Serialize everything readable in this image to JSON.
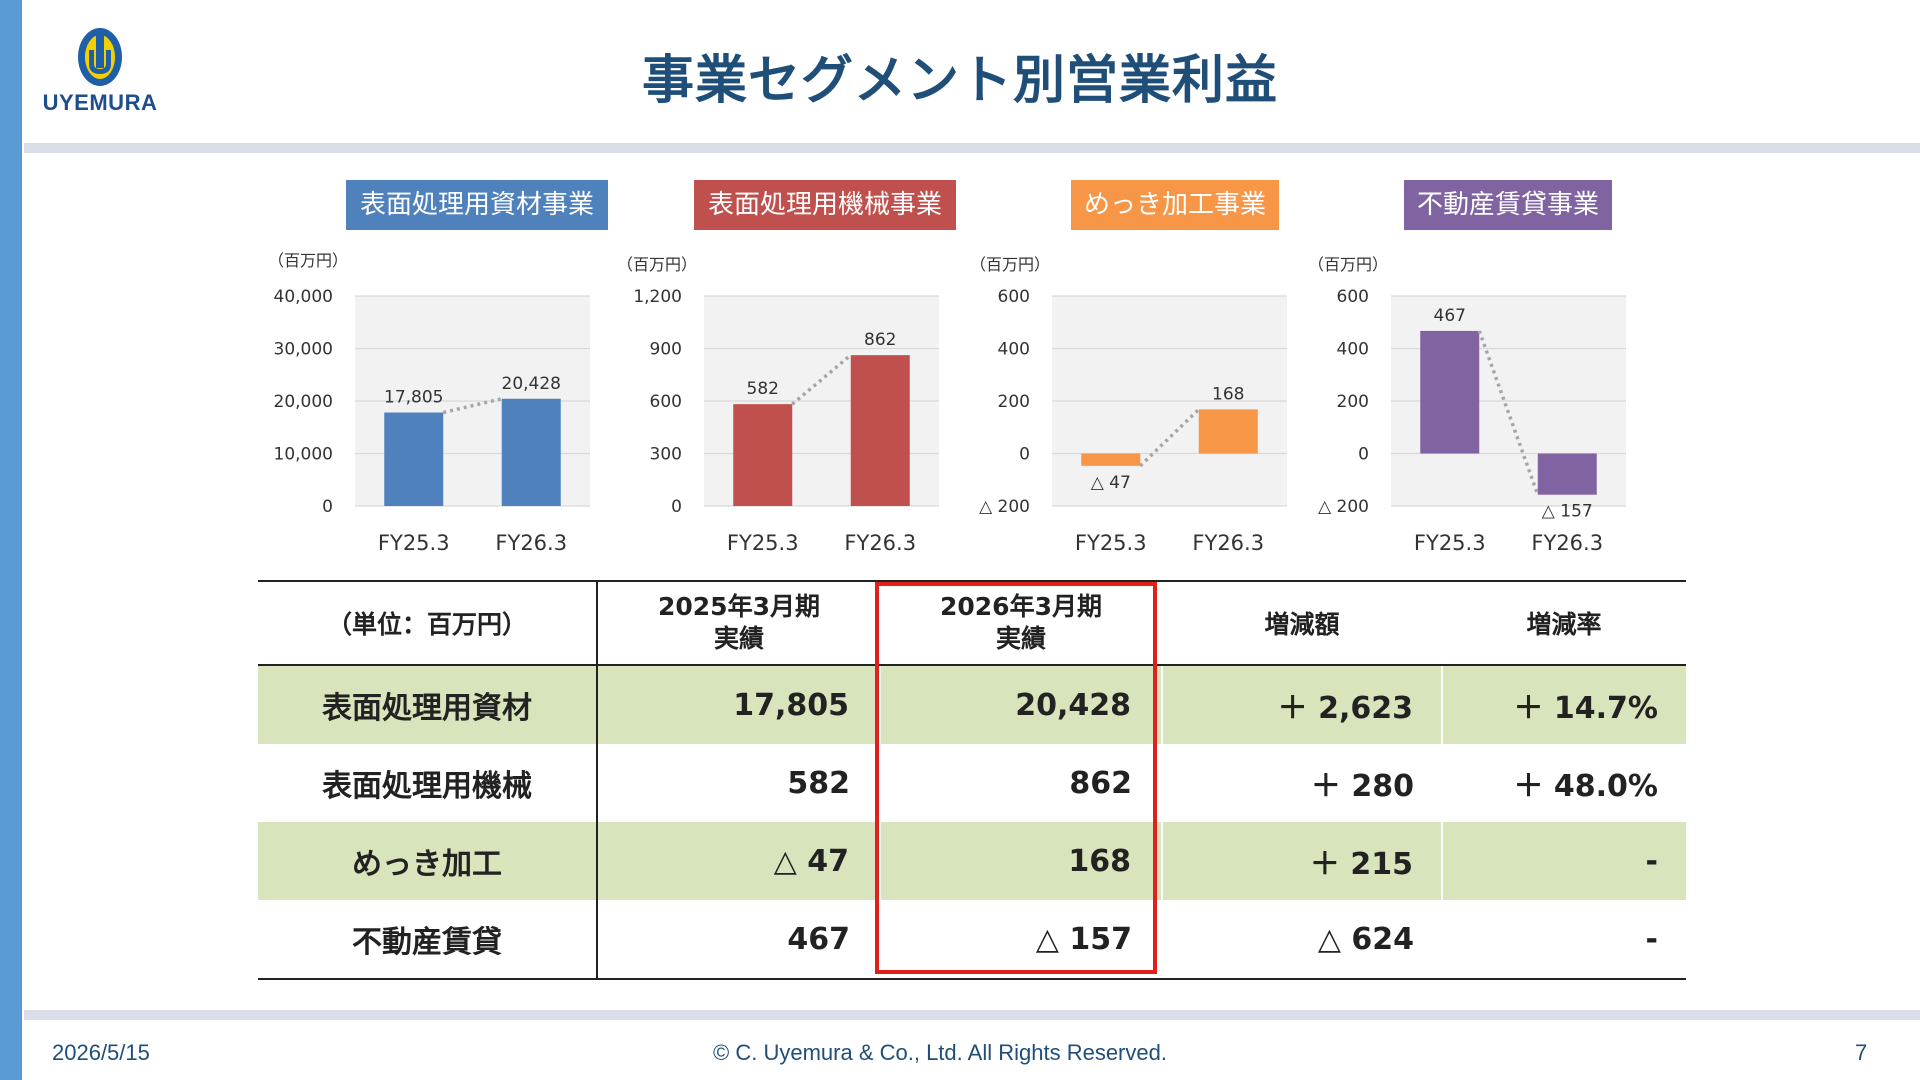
{
  "header": {
    "logo_text": "UYEMURA",
    "title": "事業セグメント別営業利益"
  },
  "colors": {
    "accent": "#5b9bd5",
    "title": "#1f4e79",
    "seg1": "#4f81bd",
    "seg2": "#c0504d",
    "seg3": "#f79646",
    "seg4": "#8064a2",
    "row_highlight": "#d8e4bc",
    "highlight_box": "#e0201b"
  },
  "segments": [
    {
      "label": "表面処理用資材事業",
      "unit": "（百万円）"
    },
    {
      "label": "表面処理用機械事業",
      "unit": "（百万円）"
    },
    {
      "label": "めっき加工事業",
      "unit": "（百万円）"
    },
    {
      "label": "不動産賃貸事業",
      "unit": "（百万円）"
    }
  ],
  "chart_data": [
    {
      "type": "bar",
      "title": "表面処理用資材事業",
      "ylabel": "（百万円）",
      "categories": [
        "FY25.3",
        "FY26.3"
      ],
      "values": [
        17805,
        20428
      ],
      "value_labels": [
        "17,805",
        "20,428"
      ],
      "ylim": [
        0,
        40000
      ],
      "yticks": [
        0,
        10000,
        20000,
        30000,
        40000
      ],
      "ytick_labels": [
        "0",
        "10,000",
        "20,000",
        "30,000",
        "40,000"
      ],
      "connector": "dotted",
      "grid": true
    },
    {
      "type": "bar",
      "title": "表面処理用機械事業",
      "ylabel": "（百万円）",
      "categories": [
        "FY25.3",
        "FY26.3"
      ],
      "values": [
        582,
        862
      ],
      "value_labels": [
        "582",
        "862"
      ],
      "ylim": [
        0,
        1200
      ],
      "yticks": [
        0,
        300,
        600,
        900,
        1200
      ],
      "ytick_labels": [
        "0",
        "300",
        "600",
        "900",
        "1,200"
      ],
      "connector": "dotted",
      "grid": true
    },
    {
      "type": "bar",
      "title": "めっき加工事業",
      "ylabel": "（百万円）",
      "categories": [
        "FY25.3",
        "FY26.3"
      ],
      "values": [
        -47,
        168
      ],
      "value_labels": [
        "△ 47",
        "168"
      ],
      "ylim": [
        -200,
        600
      ],
      "yticks": [
        -200,
        0,
        200,
        400,
        600
      ],
      "ytick_labels": [
        "△ 200",
        "0",
        "200",
        "400",
        "600"
      ],
      "connector": "dotted",
      "grid": true
    },
    {
      "type": "bar",
      "title": "不動産賃貸事業",
      "ylabel": "（百万円）",
      "categories": [
        "FY25.3",
        "FY26.3"
      ],
      "values": [
        467,
        -157
      ],
      "value_labels": [
        "467",
        "△ 157"
      ],
      "ylim": [
        -200,
        600
      ],
      "yticks": [
        -200,
        0,
        200,
        400,
        600
      ],
      "ytick_labels": [
        "△ 200",
        "0",
        "200",
        "400",
        "600"
      ],
      "connector": "dotted",
      "grid": true
    }
  ],
  "table": {
    "headers": [
      "（単位：百万円）",
      "2025年3月期\n実績",
      "2026年3月期\n実績",
      "増減額",
      "増減率"
    ],
    "rows": [
      [
        "表面処理用資材",
        "17,805",
        "20,428",
        "＋ 2,623",
        "＋ 14.7%"
      ],
      [
        "表面処理用機械",
        "582",
        "862",
        "＋ 280",
        "＋ 48.0%"
      ],
      [
        "めっき加工",
        "△ 47",
        "168",
        "＋ 215",
        "-"
      ],
      [
        "不動産賃貸",
        "467",
        "△ 157",
        "△ 624",
        "-"
      ]
    ]
  },
  "footer": {
    "date": "2026/5/15",
    "copyright": "© C. Uyemura & Co., Ltd. All Rights Reserved.",
    "page": "7"
  }
}
